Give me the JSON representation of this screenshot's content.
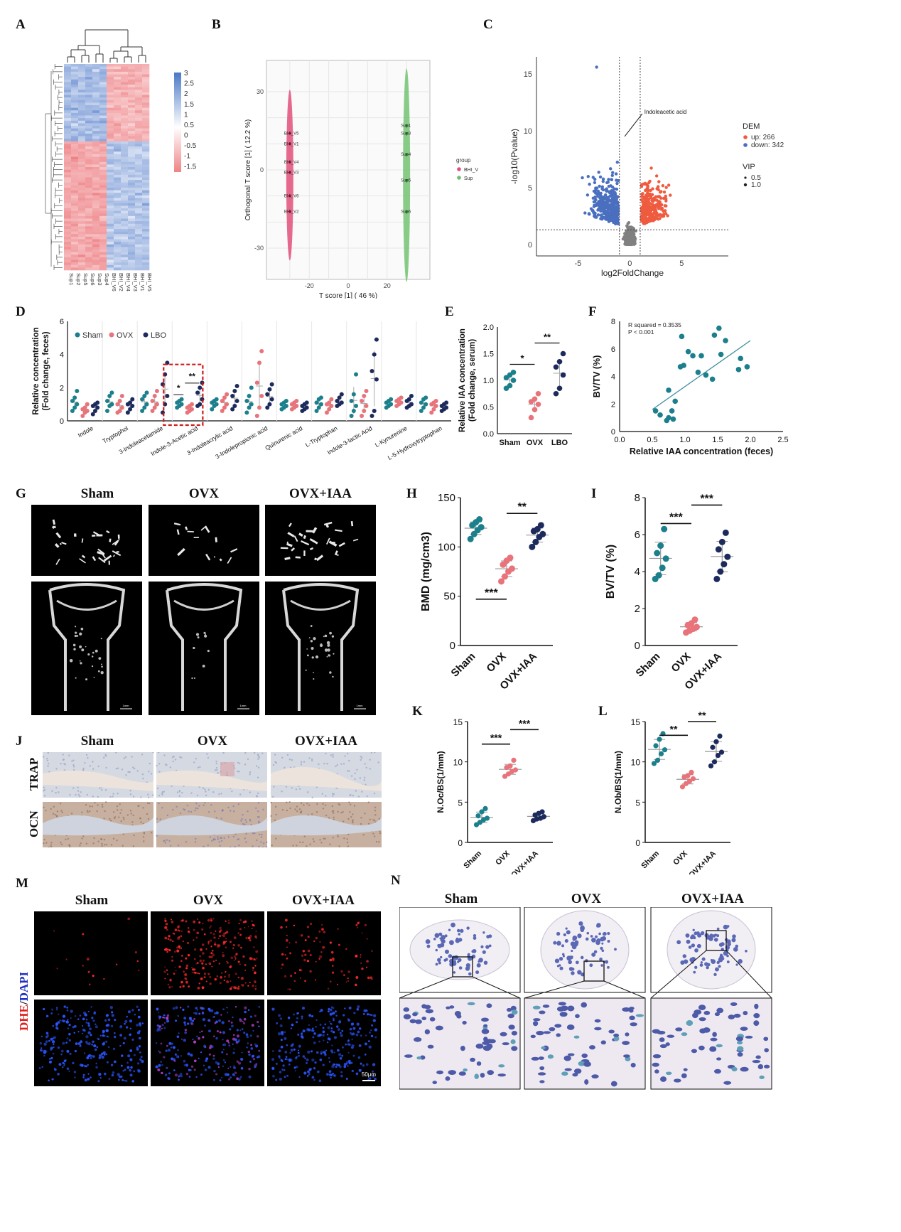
{
  "panel_labels": [
    "A",
    "B",
    "C",
    "D",
    "E",
    "F",
    "G",
    "H",
    "I",
    "J",
    "K",
    "L",
    "M",
    "N"
  ],
  "colors": {
    "sham": "#1b7f8c",
    "ovx": "#e8737a",
    "lbo": "#1d2b5c",
    "heat_high": "#4a78c5",
    "heat_low": "#ee8486",
    "up": "#ef5b3f",
    "down": "#4a6fbf",
    "ns": "#808080",
    "group_bhi": "#e24f7a",
    "group_sup": "#6cc06c",
    "dhe": "#ff2a2a",
    "dapi": "#2b55ff"
  },
  "panel_A": {
    "column_labels": [
      "Sup1",
      "Sup2",
      "Sup5",
      "Sup6",
      "Sup3",
      "Sup4",
      "BHI_V6",
      "BHI_V2",
      "BHI_V4",
      "BHI_V3",
      "BHI_V1",
      "BHI_V5"
    ],
    "legend_ticks": [
      "3",
      "2.5",
      "2",
      "1.5",
      "1",
      "0.5",
      "0",
      "-0.5",
      "-1",
      "-1.5"
    ]
  },
  "chart_data": [
    {
      "id": "B",
      "type": "scatter",
      "xlabel": "T score [1] ( 46 %)",
      "ylabel": "Orthogonal T score [1] ( 12.2 %)",
      "xticks": [
        "-20",
        "0",
        "20"
      ],
      "yticks": [
        "30",
        "0",
        "-30"
      ],
      "xlim": [
        -42,
        42
      ],
      "ylim": [
        -42,
        42
      ],
      "legend_title": "group",
      "legend": [
        "BHI_V",
        "Sup"
      ],
      "series": [
        {
          "name": "BHI_V",
          "points": [
            {
              "label": "BHI_V5",
              "x": -30,
              "y": 14
            },
            {
              "label": "BHI_V1",
              "x": -30,
              "y": 10
            },
            {
              "label": "BHI_V4",
              "x": -30,
              "y": 3
            },
            {
              "label": "BHI_V3",
              "x": -30,
              "y": -1
            },
            {
              "label": "BHI_V6",
              "x": -30,
              "y": -10
            },
            {
              "label": "BHI_V2",
              "x": -30,
              "y": -16
            }
          ]
        },
        {
          "name": "Sup",
          "points": [
            {
              "label": "Sup1",
              "x": 30,
              "y": 17
            },
            {
              "label": "Sup3",
              "x": 30,
              "y": 14
            },
            {
              "label": "Sup4",
              "x": 30,
              "y": 6
            },
            {
              "label": "Sup5",
              "x": 30,
              "y": -4
            },
            {
              "label": "Sup6",
              "x": 30,
              "y": -16
            }
          ]
        }
      ]
    },
    {
      "id": "C",
      "type": "scatter",
      "xlabel": "log2FoldChange",
      "ylabel": "-log10(Pvalue)",
      "xticks": [
        "-5",
        "0",
        "5"
      ],
      "yticks": [
        "0",
        "5",
        "10",
        "15"
      ],
      "xlim": [
        -9,
        9.5
      ],
      "ylim": [
        -1,
        16.5
      ],
      "annotation": "Indoleacetic acid",
      "legend_title": "DEM",
      "legend": [
        "up: 266",
        "down: 342"
      ],
      "vip_title": "VIP",
      "vip": [
        "0.5",
        "1.0"
      ],
      "thresholds": {
        "x": [
          -1,
          1
        ],
        "y": 1.3
      }
    },
    {
      "id": "D",
      "type": "scatter",
      "ylabel": "Relative concentration\n(Fold change, feces)",
      "yticks": [
        "0",
        "2",
        "4",
        "6"
      ],
      "ylim": [
        0,
        6
      ],
      "legend": [
        "Sham",
        "OVX",
        "LBO"
      ],
      "categories": [
        "Indole",
        "Tryptophol",
        "3-Indoleacetamide",
        "Indole-3-Acetic acid",
        "3-Indoleacrylic acid",
        "3-Indolepropionic acid",
        "Quinurenic acid",
        "L-Tryptophan",
        "Indole-3-lactic Acid",
        "L-Kynurenine",
        "L-5-Hydroxytryptophan"
      ],
      "significance": [
        "*",
        "**"
      ],
      "series": [
        {
          "name": "Sham",
          "values": [
            [
              0.6,
              0.8,
              1.0,
              1.2,
              1.4,
              1.8
            ],
            [
              0.6,
              0.9,
              1.0,
              1.2,
              1.5,
              1.7
            ],
            [
              0.6,
              0.8,
              1.0,
              1.3,
              1.5,
              1.7
            ],
            [
              0.8,
              0.9,
              1.0,
              1.1,
              1.2,
              1.3
            ],
            [
              0.7,
              0.9,
              1.0,
              1.1,
              1.2,
              1.3
            ],
            [
              0.5,
              0.8,
              1.0,
              1.2,
              1.5,
              2.0
            ],
            [
              0.7,
              0.8,
              0.9,
              1.0,
              1.1,
              1.2
            ],
            [
              0.6,
              0.8,
              1.0,
              1.1,
              1.3,
              1.4
            ],
            [
              0.3,
              0.6,
              0.9,
              1.2,
              1.6,
              2.8
            ],
            [
              0.8,
              0.9,
              1.0,
              1.1,
              1.2,
              1.3
            ],
            [
              0.6,
              0.8,
              1.0,
              1.1,
              1.3,
              1.4
            ]
          ]
        },
        {
          "name": "OVX",
          "values": [
            [
              0.3,
              0.5,
              0.6,
              0.7,
              0.8,
              1.0
            ],
            [
              0.5,
              0.6,
              0.8,
              1.0,
              1.2,
              1.5
            ],
            [
              0.6,
              0.8,
              1.0,
              1.2,
              1.5,
              1.8
            ],
            [
              0.5,
              0.6,
              0.7,
              0.8,
              0.9,
              1.0
            ],
            [
              0.6,
              0.8,
              1.0,
              1.2,
              1.4,
              1.6
            ],
            [
              0.3,
              0.8,
              1.5,
              2.3,
              3.5,
              4.2
            ],
            [
              0.7,
              0.8,
              0.9,
              1.0,
              1.1,
              1.2
            ],
            [
              0.5,
              0.7,
              0.9,
              1.0,
              1.1,
              1.3
            ],
            [
              0.3,
              0.6,
              0.9,
              1.2,
              1.5,
              1.8
            ],
            [
              0.9,
              1.0,
              1.1,
              1.2,
              1.3,
              1.4
            ],
            [
              0.5,
              0.7,
              0.9,
              1.0,
              1.1,
              1.2
            ]
          ]
        },
        {
          "name": "LBO",
          "values": [
            [
              0.4,
              0.6,
              0.8,
              0.9,
              1.0,
              1.1
            ],
            [
              0.5,
              0.7,
              0.9,
              1.0,
              1.1,
              1.3
            ],
            [
              0.5,
              1.0,
              1.5,
              2.2,
              2.8,
              3.5
            ],
            [
              0.9,
              1.0,
              1.3,
              1.7,
              2.0,
              2.3
            ],
            [
              0.7,
              0.9,
              1.2,
              1.5,
              1.8,
              2.1
            ],
            [
              0.8,
              1.0,
              1.3,
              1.6,
              1.9,
              2.2
            ],
            [
              0.6,
              0.7,
              0.8,
              0.9,
              1.0,
              1.1
            ],
            [
              0.9,
              1.0,
              1.1,
              1.2,
              1.4,
              1.6
            ],
            [
              0.3,
              0.6,
              2.5,
              3.0,
              4.0,
              4.9
            ],
            [
              0.8,
              0.9,
              1.0,
              1.2,
              1.3,
              1.5
            ],
            [
              0.6,
              0.7,
              0.8,
              0.9,
              1.0,
              1.1
            ]
          ]
        }
      ]
    },
    {
      "id": "E",
      "type": "scatter",
      "ylabel": "Relative IAA concentration\n(Fold change, serum)",
      "categories": [
        "Sham",
        "OVX",
        "LBO"
      ],
      "yticks": [
        "0.0",
        "0.5",
        "1.0",
        "1.5",
        "2.0"
      ],
      "ylim": [
        0,
        2
      ],
      "significance": [
        "*",
        "**"
      ],
      "series": [
        {
          "name": "Sham",
          "values": [
            0.85,
            0.9,
            1.0,
            1.05,
            1.1,
            1.15
          ]
        },
        {
          "name": "OVX",
          "values": [
            0.3,
            0.45,
            0.55,
            0.6,
            0.65,
            0.75
          ]
        },
        {
          "name": "LBO",
          "values": [
            0.75,
            0.85,
            1.1,
            1.25,
            1.35,
            1.5
          ]
        }
      ]
    },
    {
      "id": "F",
      "type": "scatter",
      "xlabel": "Relative IAA concentration (feces)",
      "ylabel": "BV/TV (%)",
      "xticks": [
        "0.0",
        "0.5",
        "1.0",
        "1.5",
        "2.0",
        "2.5"
      ],
      "yticks": [
        "0",
        "2",
        "4",
        "6",
        "8"
      ],
      "xlim": [
        0,
        2.5
      ],
      "ylim": [
        0,
        8
      ],
      "annotation": [
        "R squared = 0.3535",
        "P < 0.001"
      ],
      "fit": {
        "x": [
          0.5,
          2.0
        ],
        "y": [
          1.6,
          6.6
        ]
      },
      "points": [
        [
          0.55,
          1.5
        ],
        [
          0.62,
          1.2
        ],
        [
          0.72,
          0.8
        ],
        [
          0.75,
          1.0
        ],
        [
          0.8,
          1.5
        ],
        [
          0.85,
          2.2
        ],
        [
          0.75,
          3.0
        ],
        [
          0.82,
          0.9
        ],
        [
          0.93,
          4.7
        ],
        [
          0.95,
          6.9
        ],
        [
          0.98,
          4.8
        ],
        [
          1.05,
          5.8
        ],
        [
          1.12,
          5.5
        ],
        [
          1.2,
          4.3
        ],
        [
          1.25,
          5.5
        ],
        [
          1.32,
          4.1
        ],
        [
          1.42,
          3.8
        ],
        [
          1.45,
          7.0
        ],
        [
          1.52,
          7.5
        ],
        [
          1.55,
          5.6
        ],
        [
          1.62,
          6.6
        ],
        [
          1.82,
          4.5
        ],
        [
          1.85,
          5.3
        ],
        [
          1.95,
          4.7
        ]
      ]
    },
    {
      "id": "H",
      "type": "scatter",
      "ylabel": "BMD (mg/cm3)",
      "categories": [
        "Sham",
        "OVX",
        "OVX+IAA"
      ],
      "yticks": [
        "0",
        "50",
        "100",
        "150"
      ],
      "ylim": [
        0,
        150
      ],
      "significance": [
        "***",
        "**"
      ],
      "series": [
        {
          "name": "Sham",
          "values": [
            108,
            113,
            117,
            120,
            122,
            125,
            128
          ]
        },
        {
          "name": "OVX",
          "values": [
            65,
            70,
            75,
            78,
            82,
            86,
            89
          ]
        },
        {
          "name": "OVX+IAA",
          "values": [
            100,
            105,
            110,
            113,
            116,
            118,
            122
          ]
        }
      ]
    },
    {
      "id": "I",
      "type": "scatter",
      "ylabel": "BV/TV (%)",
      "categories": [
        "Sham",
        "OVX",
        "OVX+IAA"
      ],
      "yticks": [
        "0",
        "2",
        "4",
        "6",
        "8"
      ],
      "ylim": [
        0,
        8
      ],
      "significance": [
        "***",
        "***"
      ],
      "series": [
        {
          "name": "Sham",
          "values": [
            3.6,
            3.8,
            4.2,
            4.7,
            5.0,
            5.4,
            6.3
          ]
        },
        {
          "name": "OVX",
          "values": [
            0.7,
            0.8,
            0.9,
            1.0,
            1.1,
            1.2,
            1.4
          ]
        },
        {
          "name": "OVX+IAA",
          "values": [
            3.6,
            4.0,
            4.4,
            4.8,
            5.2,
            5.6,
            6.1
          ]
        }
      ]
    },
    {
      "id": "K",
      "type": "scatter",
      "ylabel": "N.Oc/BS(1/mm)",
      "categories": [
        "Sham",
        "OVX",
        "OVX+IAA"
      ],
      "yticks": [
        "0",
        "5",
        "10",
        "15"
      ],
      "ylim": [
        0,
        15
      ],
      "significance": [
        "***",
        "***"
      ],
      "series": [
        {
          "name": "Sham",
          "values": [
            2.2,
            2.5,
            2.8,
            3.0,
            3.3,
            3.8,
            4.2
          ]
        },
        {
          "name": "OVX",
          "values": [
            8.2,
            8.5,
            8.8,
            9.0,
            9.3,
            9.5,
            10.2
          ]
        },
        {
          "name": "OVX+IAA",
          "values": [
            2.7,
            2.9,
            3.0,
            3.2,
            3.4,
            3.6,
            3.8
          ]
        }
      ]
    },
    {
      "id": "L",
      "type": "scatter",
      "ylabel": "N.Ob/BS(1/mm)",
      "categories": [
        "Sham",
        "OVX",
        "OVX+IAA"
      ],
      "yticks": [
        "0",
        "5",
        "10",
        "15"
      ],
      "ylim": [
        0,
        15
      ],
      "significance": [
        "**",
        "**"
      ],
      "series": [
        {
          "name": "Sham",
          "values": [
            9.8,
            10.2,
            11.0,
            11.5,
            12.0,
            12.8,
            13.5
          ]
        },
        {
          "name": "OVX",
          "values": [
            6.9,
            7.3,
            7.6,
            7.9,
            8.1,
            8.3,
            8.7
          ]
        },
        {
          "name": "OVX+IAA",
          "values": [
            9.5,
            10.0,
            10.8,
            11.2,
            11.8,
            12.5,
            13.2
          ]
        }
      ]
    }
  ],
  "panel_G": {
    "groups": [
      "Sham",
      "OVX",
      "OVX+IAA"
    ],
    "scale": "1mm"
  },
  "panel_J": {
    "groups": [
      "Sham",
      "OVX",
      "OVX+IAA"
    ],
    "rows": [
      "TRAP",
      "OCN"
    ]
  },
  "panel_M": {
    "groups": [
      "Sham",
      "OVX",
      "OVX+IAA"
    ],
    "side_dhe": "DHE",
    "side_sep": "/",
    "side_dapi": "DAPI",
    "scale": "50μm"
  },
  "panel_N": {
    "groups": [
      "Sham",
      "OVX",
      "OVX+IAA"
    ]
  }
}
